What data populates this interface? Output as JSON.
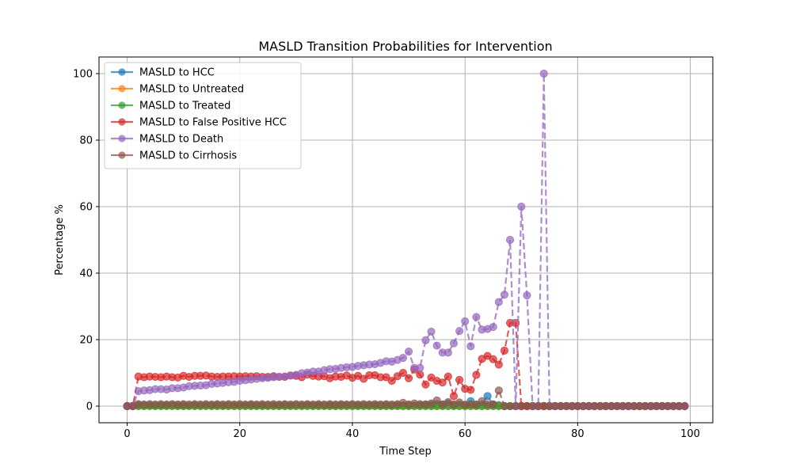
{
  "chart_data": {
    "type": "line",
    "title": "MASLD Transition Probabilities for Intervention",
    "xlabel": "Time Step",
    "ylabel": "Percentage %",
    "xlim": [
      -5,
      104
    ],
    "ylim": [
      -5,
      105
    ],
    "xticks": [
      0,
      20,
      40,
      60,
      80,
      100
    ],
    "yticks": [
      0,
      20,
      40,
      60,
      80,
      100
    ],
    "grid": true,
    "legend_position": "top-left",
    "x": [
      0,
      1,
      2,
      3,
      4,
      5,
      6,
      7,
      8,
      9,
      10,
      11,
      12,
      13,
      14,
      15,
      16,
      17,
      18,
      19,
      20,
      21,
      22,
      23,
      24,
      25,
      26,
      27,
      28,
      29,
      30,
      31,
      32,
      33,
      34,
      35,
      36,
      37,
      38,
      39,
      40,
      41,
      42,
      43,
      44,
      45,
      46,
      47,
      48,
      49,
      50,
      51,
      52,
      53,
      54,
      55,
      56,
      57,
      58,
      59,
      60,
      61,
      62,
      63,
      64,
      65,
      66,
      67,
      68,
      69,
      70,
      71,
      72,
      73,
      74,
      75,
      76,
      77,
      78,
      79,
      80,
      81,
      82,
      83,
      84,
      85,
      86,
      87,
      88,
      89,
      90,
      91,
      92,
      93,
      94,
      95,
      96,
      97,
      98,
      99
    ],
    "series": [
      {
        "name": "MASLD to HCC",
        "color": "#1f77b4",
        "values": [
          0,
          0,
          0.3,
          0.2,
          0.3,
          0.2,
          0.3,
          0.2,
          0.3,
          0.2,
          0.3,
          0.2,
          0.3,
          0.2,
          0.3,
          0.2,
          0.3,
          0.2,
          0.3,
          0.2,
          0.3,
          0.2,
          0.3,
          0.2,
          0.3,
          0.2,
          0.3,
          0.2,
          0.3,
          0.2,
          0.3,
          0.2,
          0.3,
          0.2,
          0.3,
          0.2,
          0.3,
          0.2,
          0.3,
          0.2,
          0.3,
          0.2,
          0.3,
          0.2,
          0.3,
          0.2,
          0.3,
          0.2,
          0.3,
          0.2,
          0.3,
          0.2,
          0.3,
          0.5,
          0.4,
          0.6,
          0.5,
          0.8,
          0.3,
          0.5,
          0.4,
          1.5,
          0.3,
          0.5,
          3.0,
          0.5,
          0.3,
          0,
          0,
          0,
          0,
          0,
          0,
          0,
          0,
          0,
          0,
          0,
          0,
          0,
          0,
          0,
          0,
          0,
          0,
          0,
          0,
          0,
          0,
          0,
          0,
          0,
          0,
          0,
          0,
          0,
          0,
          0,
          0,
          0
        ]
      },
      {
        "name": "MASLD to Untreated",
        "color": "#ff7f0e",
        "values": [
          0,
          0,
          0.1,
          0.1,
          0.1,
          0.1,
          0.1,
          0.1,
          0.1,
          0.1,
          0.1,
          0.1,
          0.1,
          0.1,
          0.1,
          0.1,
          0.1,
          0.1,
          0.1,
          0.1,
          0.1,
          0.1,
          0.1,
          0.1,
          0.1,
          0.1,
          0.1,
          0.1,
          0.1,
          0.1,
          0.1,
          0.1,
          0.1,
          0.1,
          0.1,
          0.1,
          0.1,
          0.1,
          0.1,
          0.1,
          0.1,
          0.1,
          0.1,
          0.1,
          0.1,
          0.1,
          0.1,
          0.1,
          0.1,
          0.1,
          0.1,
          0.1,
          0.1,
          0.1,
          0.1,
          0.1,
          0.1,
          0.1,
          0.1,
          0.1,
          0.1,
          0.1,
          0.1,
          0.1,
          0.1,
          0.1,
          0.1,
          0,
          0,
          0,
          0,
          0,
          0,
          0,
          0,
          0,
          0,
          0,
          0,
          0,
          0,
          0,
          0,
          0,
          0,
          0,
          0,
          0,
          0,
          0,
          0,
          0,
          0,
          0,
          0,
          0,
          0,
          0,
          0,
          0
        ]
      },
      {
        "name": "MASLD to Treated",
        "color": "#2ca02c",
        "values": [
          0,
          0,
          0,
          0,
          0,
          0,
          0,
          0,
          0,
          0,
          0,
          0,
          0,
          0,
          0,
          0,
          0,
          0,
          0,
          0,
          0,
          0,
          0,
          0,
          0,
          0,
          0,
          0,
          0,
          0,
          0,
          0,
          0,
          0,
          0,
          0,
          0,
          0,
          0,
          0,
          0,
          0,
          0,
          0,
          0,
          0,
          0,
          0,
          0,
          0,
          0,
          0,
          0,
          0,
          0,
          0,
          0,
          0,
          0,
          0,
          0,
          0,
          0,
          0,
          0,
          0,
          0,
          0,
          0,
          0,
          0,
          0,
          0,
          0,
          0,
          0,
          0,
          0,
          0,
          0,
          0,
          0,
          0,
          0,
          0,
          0,
          0,
          0,
          0,
          0,
          0,
          0,
          0,
          0,
          0,
          0,
          0,
          0,
          0,
          0
        ]
      },
      {
        "name": "MASLD to False Positive HCC",
        "color": "#d62728",
        "values": [
          0,
          0,
          8.9,
          8.7,
          8.9,
          8.8,
          8.7,
          8.9,
          8.7,
          8.6,
          9.1,
          8.8,
          9.1,
          9.1,
          9.2,
          8.9,
          8.8,
          8.9,
          8.9,
          9.0,
          8.9,
          9.0,
          8.9,
          9.0,
          8.8,
          8.8,
          9.0,
          8.8,
          8.8,
          9.2,
          9.1,
          8.7,
          9.5,
          9.1,
          8.9,
          9.0,
          8.4,
          8.9,
          8.8,
          9.2,
          8.5,
          9.1,
          8.2,
          9.3,
          9.3,
          8.7,
          8.7,
          7.6,
          9.0,
          10.0,
          8.4,
          11.0,
          9.5,
          6.5,
          8.6,
          7.6,
          7.1,
          8.9,
          3.0,
          7.9,
          5.2,
          4.9,
          9.4,
          14.2,
          15.1,
          14.1,
          12.5,
          16.7,
          25.0,
          25.0,
          0,
          0,
          0,
          0,
          0,
          0,
          0,
          0,
          0,
          0,
          0,
          0,
          0,
          0,
          0,
          0,
          0,
          0,
          0,
          0,
          0,
          0,
          0,
          0,
          0,
          0,
          0,
          0,
          0,
          0
        ]
      },
      {
        "name": "MASLD to Death",
        "color": "#9467bd",
        "values": [
          0,
          0,
          4.5,
          4.7,
          4.8,
          5.1,
          5.1,
          5.0,
          5.4,
          5.4,
          5.6,
          6.0,
          6.1,
          6.2,
          6.3,
          6.7,
          6.8,
          7.0,
          7.2,
          7.3,
          7.6,
          7.8,
          8.0,
          8.2,
          8.4,
          8.5,
          8.7,
          8.8,
          8.9,
          9.2,
          9.4,
          9.9,
          10.1,
          10.4,
          10.4,
          10.8,
          11.1,
          11.2,
          11.5,
          11.7,
          11.8,
          12.1,
          12.3,
          12.5,
          12.6,
          13.0,
          13.5,
          13.4,
          13.9,
          14.5,
          16.4,
          11.5,
          11.5,
          19.8,
          22.4,
          18.2,
          16.1,
          16.1,
          18.9,
          22.6,
          25.5,
          18.0,
          26.8,
          23.0,
          23.2,
          23.8,
          31.3,
          33.5,
          50.0,
          0,
          60.0,
          33.3,
          0,
          0,
          100.0,
          0,
          0,
          0,
          0,
          0,
          0,
          0,
          0,
          0,
          0,
          0,
          0,
          0,
          0,
          0,
          0,
          0,
          0,
          0,
          0,
          0,
          0,
          0,
          0,
          0
        ]
      },
      {
        "name": "MASLD to Cirrhosis",
        "color": "#8c564b",
        "values": [
          0,
          0,
          0.6,
          0.5,
          0.6,
          0.5,
          0.6,
          0.5,
          0.6,
          0.5,
          0.6,
          0.5,
          0.6,
          0.5,
          0.6,
          0.5,
          0.6,
          0.5,
          0.6,
          0.5,
          0.6,
          0.5,
          0.6,
          0.5,
          0.6,
          0.5,
          0.6,
          0.5,
          0.6,
          0.5,
          0.6,
          0.5,
          0.6,
          0.5,
          0.6,
          0.5,
          0.6,
          0.5,
          0.6,
          0.5,
          0.6,
          0.5,
          0.6,
          0.5,
          0.6,
          0.5,
          0.6,
          0.5,
          0.6,
          1.0,
          0.5,
          0.8,
          0.6,
          0.5,
          0.8,
          1.7,
          0.5,
          1.2,
          0.5,
          1.1,
          0.4,
          0.6,
          0.5,
          1.5,
          0.5,
          0.5,
          4.7,
          0,
          0,
          0,
          0,
          0,
          0,
          0,
          0,
          0,
          0,
          0,
          0,
          0,
          0,
          0,
          0,
          0,
          0,
          0,
          0,
          0,
          0,
          0,
          0,
          0,
          0,
          0,
          0,
          0,
          0,
          0,
          0,
          0
        ]
      }
    ]
  }
}
